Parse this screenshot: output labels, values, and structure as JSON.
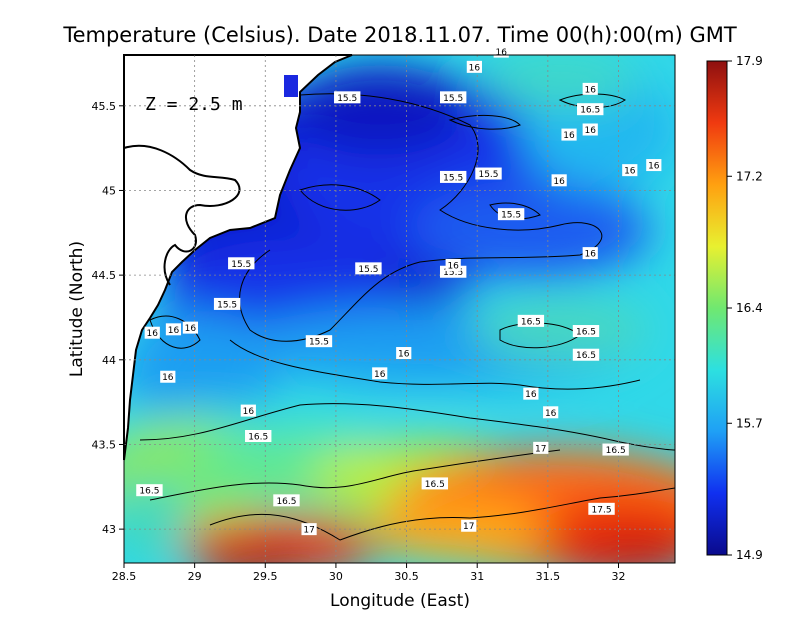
{
  "chart_data": {
    "type": "heatmap",
    "title": "Temperature (Celsius). Date 2018.11.07. Time 00(h):00(m) GMT",
    "xlabel": "Longitude (East)",
    "ylabel": "Latitude (North)",
    "depth_label": "Z = 2.5 m",
    "xlim": [
      28.5,
      32.4
    ],
    "ylim": [
      42.8,
      45.8
    ],
    "x_ticks": [
      "28.5",
      "29",
      "29.5",
      "30",
      "30.5",
      "31",
      "31.5",
      "32"
    ],
    "y_ticks": [
      "43",
      "43.5",
      "44",
      "44.5",
      "45",
      "45.5"
    ],
    "grid": true,
    "colorbar": {
      "min": 14.9,
      "max": 17.9,
      "ticks": [
        "14.9",
        "15.7",
        "16.4",
        "17.2",
        "17.9"
      ],
      "colors": [
        "#0a0a8c",
        "#1030f0",
        "#1fa0f5",
        "#2de0e0",
        "#70e870",
        "#e8f030",
        "#ffa010",
        "#f03a10",
        "#8e1010"
      ]
    },
    "contour_labels": [
      {
        "text": "15.5",
        "lon": 30.08,
        "lat": 45.55
      },
      {
        "text": "15.5",
        "lon": 30.83,
        "lat": 45.55
      },
      {
        "text": "15.5",
        "lon": 30.83,
        "lat": 45.08
      },
      {
        "text": "15.5",
        "lon": 31.08,
        "lat": 45.1
      },
      {
        "text": "15.5",
        "lon": 31.24,
        "lat": 44.86
      },
      {
        "text": "15.5",
        "lon": 29.33,
        "lat": 44.57
      },
      {
        "text": "15.5",
        "lon": 30.23,
        "lat": 44.54
      },
      {
        "text": "15.5",
        "lon": 29.23,
        "lat": 44.33
      },
      {
        "text": "15.5",
        "lon": 29.88,
        "lat": 44.11
      },
      {
        "text": "15.5",
        "lon": 30.83,
        "lat": 44.52
      },
      {
        "text": "16",
        "lon": 30.98,
        "lat": 45.73
      },
      {
        "text": "16",
        "lon": 31.17,
        "lat": 45.82
      },
      {
        "text": "16",
        "lon": 31.8,
        "lat": 45.6
      },
      {
        "text": "16",
        "lon": 31.65,
        "lat": 45.33
      },
      {
        "text": "16",
        "lon": 31.8,
        "lat": 45.36
      },
      {
        "text": "16",
        "lon": 32.08,
        "lat": 45.12
      },
      {
        "text": "16",
        "lon": 32.25,
        "lat": 45.15
      },
      {
        "text": "16",
        "lon": 31.58,
        "lat": 45.06
      },
      {
        "text": "16",
        "lon": 31.8,
        "lat": 44.63
      },
      {
        "text": "16",
        "lon": 30.83,
        "lat": 44.56
      },
      {
        "text": "16",
        "lon": 28.7,
        "lat": 44.16
      },
      {
        "text": "16",
        "lon": 28.85,
        "lat": 44.18
      },
      {
        "text": "16",
        "lon": 28.97,
        "lat": 44.19
      },
      {
        "text": "16",
        "lon": 30.48,
        "lat": 44.04
      },
      {
        "text": "16",
        "lon": 30.31,
        "lat": 43.92
      },
      {
        "text": "16",
        "lon": 28.81,
        "lat": 43.9
      },
      {
        "text": "16",
        "lon": 29.38,
        "lat": 43.7
      },
      {
        "text": "16",
        "lon": 31.38,
        "lat": 43.8
      },
      {
        "text": "16",
        "lon": 31.52,
        "lat": 43.69
      },
      {
        "text": "16.5",
        "lon": 31.38,
        "lat": 44.23
      },
      {
        "text": "16.5",
        "lon": 31.77,
        "lat": 44.17
      },
      {
        "text": "16.5",
        "lon": 31.8,
        "lat": 45.48
      },
      {
        "text": "16.5",
        "lon": 31.77,
        "lat": 44.03
      },
      {
        "text": "16.5",
        "lon": 29.45,
        "lat": 43.55
      },
      {
        "text": "16.5",
        "lon": 28.68,
        "lat": 43.23
      },
      {
        "text": "16.5",
        "lon": 29.65,
        "lat": 43.17
      },
      {
        "text": "16.5",
        "lon": 30.7,
        "lat": 43.27
      },
      {
        "text": "16.5",
        "lon": 31.98,
        "lat": 43.47
      },
      {
        "text": "17",
        "lon": 31.45,
        "lat": 43.48
      },
      {
        "text": "17",
        "lon": 30.94,
        "lat": 43.02
      },
      {
        "text": "17",
        "lon": 29.81,
        "lat": 43.0
      },
      {
        "text": "17.5",
        "lon": 31.88,
        "lat": 43.12
      }
    ]
  }
}
